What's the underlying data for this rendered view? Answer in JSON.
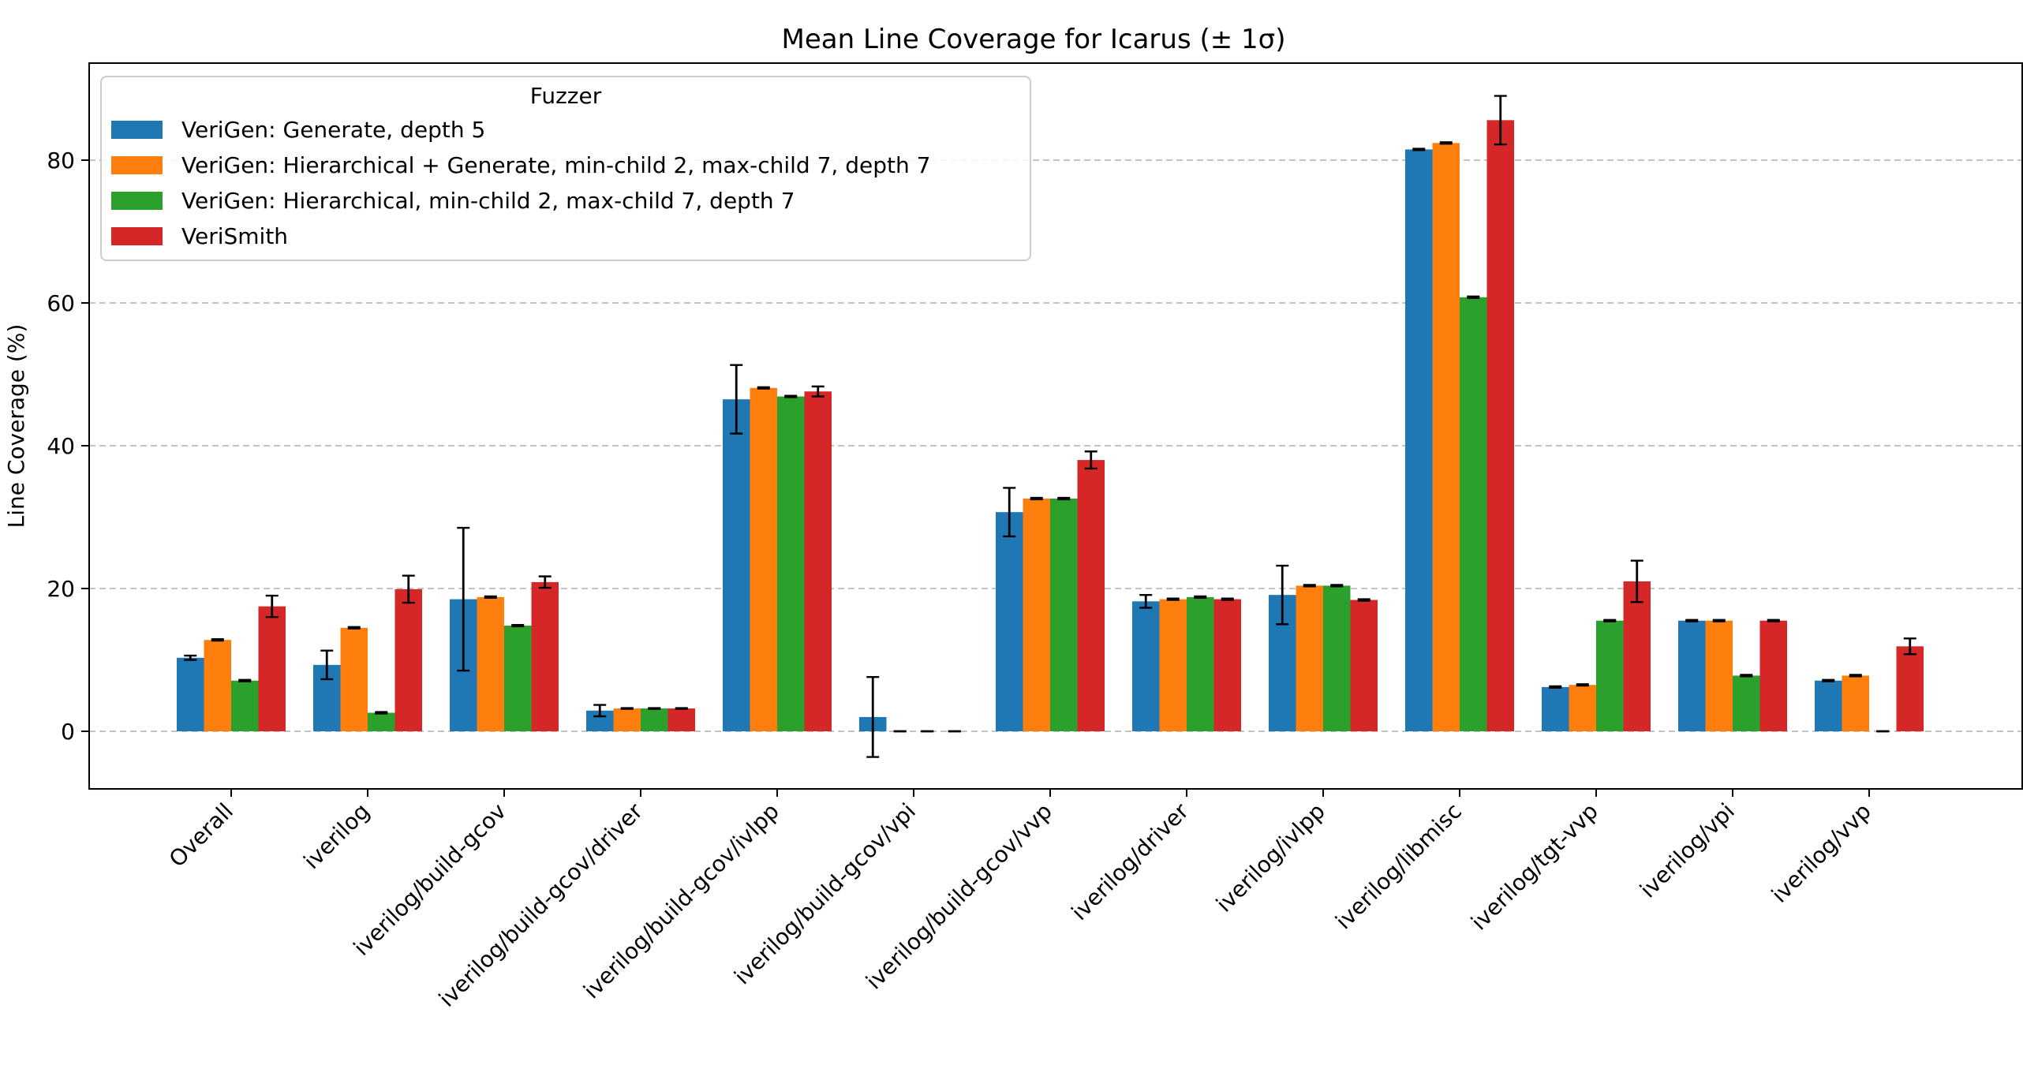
{
  "chart_data": {
    "type": "bar",
    "title": "Mean Line Coverage for Icarus (± 1σ)",
    "xlabel": "",
    "ylabel": "Line Coverage (%)",
    "ylim": [
      -8.5,
      94
    ],
    "yticks": [
      0,
      20,
      40,
      60,
      80
    ],
    "grid": "y-dashed",
    "legend_title": "Fuzzer",
    "legend_position": "top-left",
    "categories": [
      "Overall",
      "iverilog",
      "iverilog/build-gcov",
      "iverilog/build-gcov/driver",
      "iverilog/build-gcov/ivlpp",
      "iverilog/build-gcov/vpi",
      "iverilog/build-gcov/vvp",
      "iverilog/driver",
      "iverilog/ivlpp",
      "iverilog/libmisc",
      "iverilog/tgt-vvp",
      "iverilog/vpi",
      "iverilog/vvp"
    ],
    "series": [
      {
        "name": "VeriGen: Generate, depth 5",
        "color": "#1f77b4",
        "values": [
          10.3,
          9.3,
          18.5,
          2.9,
          46.5,
          2.0,
          30.7,
          18.2,
          19.1,
          81.5,
          6.2,
          15.5,
          7.1
        ],
        "errors": [
          0.3,
          2.0,
          10.0,
          0.8,
          4.8,
          5.6,
          3.4,
          0.9,
          4.1,
          0.1,
          0.1,
          0.1,
          0.1
        ]
      },
      {
        "name": "VeriGen: Hierarchical + Generate, min-child 2, max-child 7, depth 7",
        "color": "#ff7f0e",
        "values": [
          12.8,
          14.5,
          18.8,
          3.2,
          48.1,
          0.0,
          32.6,
          18.5,
          20.4,
          82.4,
          6.5,
          15.5,
          7.8
        ],
        "errors": [
          0.1,
          0.1,
          0.1,
          0.05,
          0.1,
          0.0,
          0.1,
          0.1,
          0.1,
          0.1,
          0.1,
          0.1,
          0.1
        ]
      },
      {
        "name": "VeriGen: Hierarchical, min-child 2, max-child 7, depth 7",
        "color": "#2ca02c",
        "values": [
          7.1,
          2.6,
          14.8,
          3.2,
          46.9,
          0.0,
          32.6,
          18.8,
          20.4,
          60.8,
          15.5,
          7.8,
          0.0
        ],
        "errors": [
          0.1,
          0.1,
          0.1,
          0.05,
          0.1,
          0.0,
          0.1,
          0.1,
          0.1,
          0.1,
          0.1,
          0.1,
          0.0
        ]
      },
      {
        "name": "VeriSmith",
        "color": "#d62728",
        "values": [
          17.5,
          19.9,
          20.9,
          3.2,
          47.6,
          0.0,
          38.0,
          18.5,
          18.4,
          85.6,
          21.0,
          15.5,
          11.9
        ],
        "errors": [
          1.5,
          1.9,
          0.8,
          0.05,
          0.7,
          0.0,
          1.2,
          0.1,
          0.1,
          3.4,
          2.9,
          0.1,
          1.1
        ]
      }
    ]
  }
}
